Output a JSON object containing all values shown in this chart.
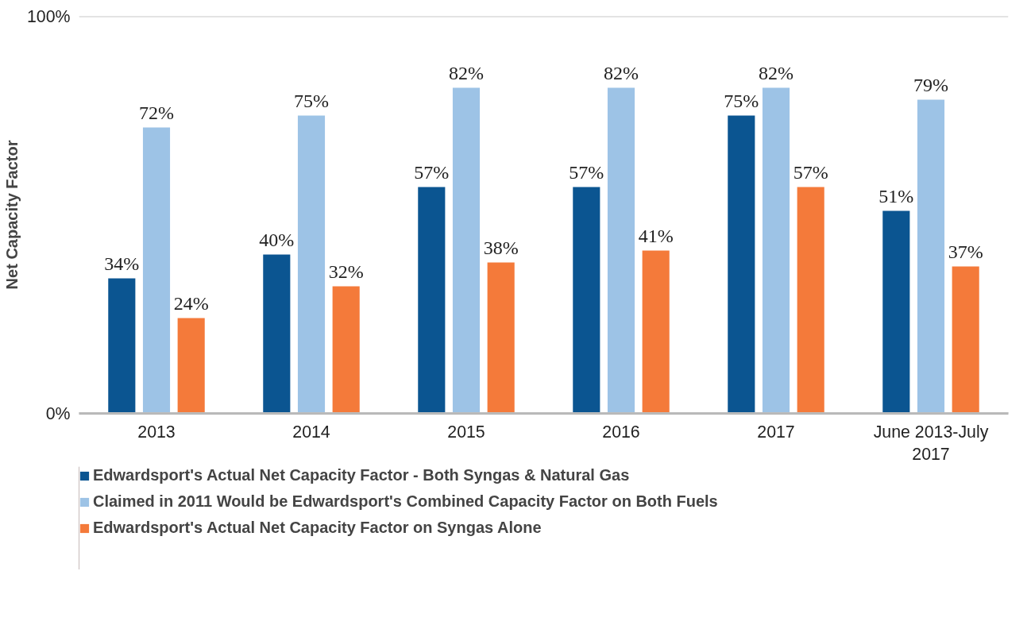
{
  "chart_data": {
    "type": "bar",
    "ylabel": "Net Capacity Factor",
    "categories": [
      "2013",
      "2014",
      "2015",
      "2016",
      "2017",
      "June 2013-July 2017"
    ],
    "series": [
      {
        "name": "Edwardsport's Actual Net Capacity Factor - Both Syngas & Natural Gas",
        "color": "#0b5591",
        "values": [
          34,
          40,
          57,
          57,
          75,
          51
        ],
        "value_labels": [
          "34%",
          "40%",
          "57%",
          "57%",
          "75%",
          "51%"
        ]
      },
      {
        "name": "Claimed in 2011 Would be Edwardsport's Combined Capacity Factor on Both Fuels",
        "color": "#9dc3e6",
        "values": [
          72,
          75,
          82,
          82,
          82,
          79
        ],
        "value_labels": [
          "72%",
          "75%",
          "82%",
          "82%",
          "82%",
          "79%"
        ]
      },
      {
        "name": "Edwardsport's Actual Net Capacity Factor on Syngas Alone",
        "color": "#f47a3a",
        "values": [
          24,
          32,
          38,
          41,
          57,
          37
        ],
        "value_labels": [
          "24%",
          "32%",
          "38%",
          "41%",
          "57%",
          "37%"
        ]
      }
    ],
    "ylim": [
      0,
      100
    ],
    "yticks": [
      {
        "value": 0,
        "label": "0%"
      },
      {
        "value": 100,
        "label": "100%"
      }
    ],
    "grid": "y",
    "legend": "bottom"
  }
}
